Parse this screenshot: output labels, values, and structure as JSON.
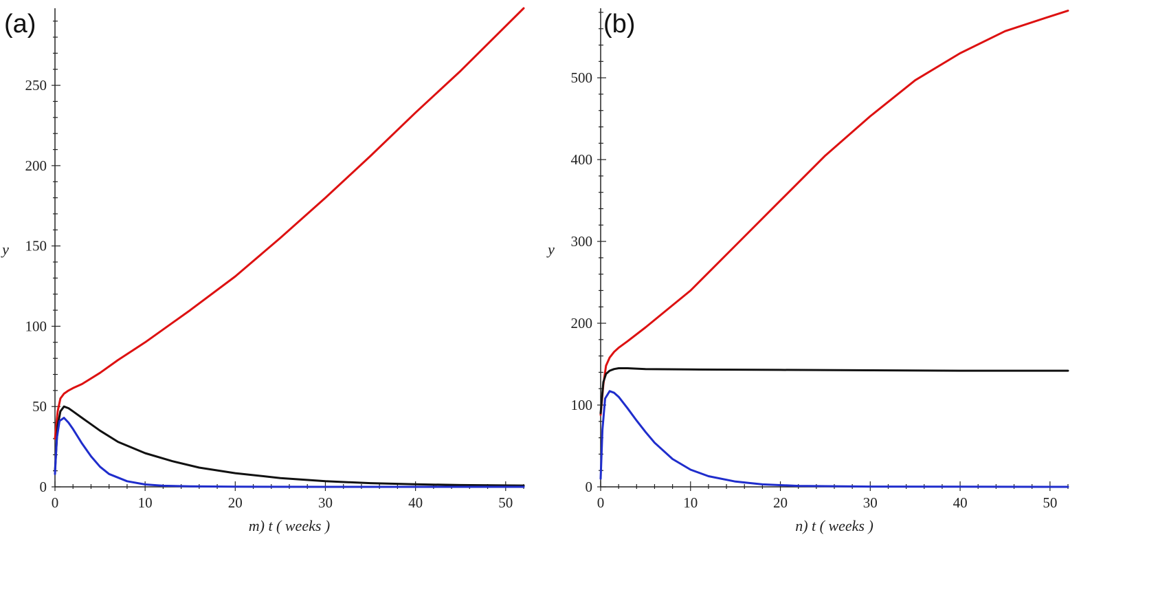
{
  "chart_data": [
    {
      "panel_label": "(a)",
      "type": "line",
      "xlabel": "m)  t  ( weeks )",
      "ylabel": "y",
      "xlim": [
        0,
        52
      ],
      "ylim": [
        0,
        298
      ],
      "xticks": [
        0,
        10,
        20,
        30,
        40,
        50
      ],
      "yticks": [
        0,
        50,
        100,
        150,
        200,
        250
      ],
      "grid": false,
      "series": [
        {
          "color": "#dd1111",
          "x": [
            0,
            0.3,
            0.6,
            1,
            1.5,
            2,
            3,
            5,
            7,
            10,
            15,
            20,
            25,
            30,
            35,
            40,
            45,
            52
          ],
          "y": [
            30,
            47,
            55,
            58,
            60,
            61.5,
            64,
            71,
            79,
            90,
            110,
            131,
            155,
            180,
            206,
            233,
            259,
            298
          ]
        },
        {
          "color": "#111111",
          "x": [
            0,
            0.3,
            0.6,
            1,
            1.5,
            2,
            3,
            5,
            7,
            10,
            13,
            16,
            20,
            25,
            30,
            35,
            40,
            45,
            52
          ],
          "y": [
            10,
            38,
            47,
            50,
            49,
            47,
            43,
            35,
            28,
            21,
            16,
            12,
            8.5,
            5.5,
            3.5,
            2.3,
            1.6,
            1.1,
            0.8
          ]
        },
        {
          "color": "#1f2dcc",
          "x": [
            0,
            0.2,
            0.5,
            1,
            1.5,
            2,
            3,
            4,
            5,
            6,
            8,
            10,
            12,
            15,
            20,
            30,
            52
          ],
          "y": [
            8,
            30,
            41,
            43,
            40,
            36,
            27,
            19,
            12.5,
            8,
            3.5,
            1.5,
            0.7,
            0.3,
            0.1,
            0,
            0
          ]
        }
      ]
    },
    {
      "panel_label": "(b)",
      "type": "line",
      "xlabel": "n)  t  ( weeks )",
      "ylabel": "y",
      "xlim": [
        0,
        52
      ],
      "ylim": [
        0,
        585
      ],
      "xticks": [
        0,
        10,
        20,
        30,
        40,
        50
      ],
      "yticks": [
        0,
        100,
        200,
        300,
        400,
        500
      ],
      "grid": false,
      "series": [
        {
          "color": "#dd1111",
          "x": [
            0,
            0.3,
            0.6,
            1,
            1.5,
            2,
            3,
            5,
            7,
            10,
            15,
            20,
            25,
            30,
            35,
            40,
            45,
            50,
            52
          ],
          "y": [
            88,
            125,
            148,
            158,
            165,
            170,
            178,
            195,
            213,
            240,
            295,
            350,
            405,
            453,
            497,
            530,
            557,
            575,
            582
          ]
        },
        {
          "color": "#111111",
          "x": [
            0,
            0.3,
            0.6,
            1,
            1.5,
            2,
            3,
            5,
            10,
            20,
            30,
            40,
            52
          ],
          "y": [
            90,
            128,
            138,
            142,
            144,
            145,
            145,
            144,
            143.5,
            143,
            142.5,
            142,
            142
          ]
        },
        {
          "color": "#1f2dcc",
          "x": [
            0,
            0.2,
            0.5,
            1,
            1.5,
            2,
            3,
            4,
            5,
            6,
            8,
            10,
            12,
            15,
            18,
            22,
            30,
            52
          ],
          "y": [
            10,
            70,
            108,
            117,
            115,
            110,
            96,
            81,
            67,
            54,
            34,
            21,
            13,
            6.5,
            3,
            1.2,
            0.3,
            0
          ]
        }
      ]
    }
  ]
}
